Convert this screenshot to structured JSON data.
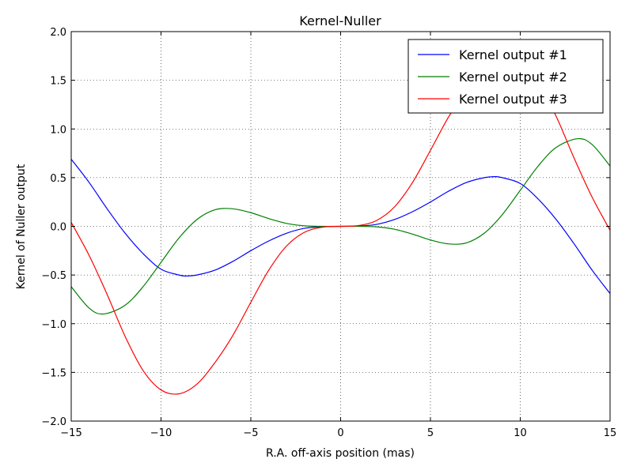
{
  "chart_data": {
    "type": "line",
    "title": "Kernel-Nuller",
    "xlabel": "R.A. off-axis position (mas)",
    "ylabel": "Kernel of Nuller output",
    "xlim": [
      -15,
      15
    ],
    "ylim": [
      -2.0,
      2.0
    ],
    "xticks": [
      "−15",
      "−10",
      "−5",
      "0",
      "5",
      "10",
      "15"
    ],
    "yticks": [
      "−2.0",
      "−1.5",
      "−1.0",
      "−0.5",
      "0.0",
      "0.5",
      "1.0",
      "1.5",
      "2.0"
    ],
    "grid": true,
    "legend_position": "top-right",
    "series": [
      {
        "name": "Kernel output #1",
        "color": "#0000ff",
        "x": [
          -15,
          -14,
          -13,
          -12,
          -11,
          -10,
          -9,
          -8.6,
          -8,
          -7,
          -6,
          -5,
          -4,
          -3,
          -2,
          -1,
          0,
          1,
          2,
          3,
          4,
          5,
          6,
          7,
          8,
          8.6,
          9,
          10,
          11,
          12,
          13,
          14,
          15
        ],
        "y": [
          0.69,
          0.45,
          0.18,
          -0.07,
          -0.28,
          -0.44,
          -0.5,
          -0.51,
          -0.5,
          -0.45,
          -0.36,
          -0.25,
          -0.15,
          -0.07,
          -0.02,
          -0.003,
          0.0,
          0.003,
          0.02,
          0.07,
          0.15,
          0.25,
          0.36,
          0.45,
          0.5,
          0.51,
          0.5,
          0.44,
          0.28,
          0.07,
          -0.18,
          -0.45,
          -0.69
        ]
      },
      {
        "name": "Kernel output #2",
        "color": "#008000",
        "x": [
          -15,
          -14,
          -13.2,
          -12,
          -11,
          -10,
          -9,
          -8,
          -7,
          -6,
          -5,
          -4,
          -3,
          -2,
          -1,
          0,
          1,
          2,
          3,
          4,
          5,
          6,
          7,
          8,
          9,
          10,
          11,
          12,
          13.2,
          14,
          15
        ],
        "y": [
          -0.62,
          -0.84,
          -0.9,
          -0.81,
          -0.62,
          -0.37,
          -0.12,
          0.07,
          0.17,
          0.18,
          0.14,
          0.08,
          0.03,
          0.005,
          0.0,
          0.0,
          0.0,
          -0.005,
          -0.03,
          -0.08,
          -0.14,
          -0.18,
          -0.17,
          -0.07,
          0.12,
          0.37,
          0.62,
          0.81,
          0.9,
          0.84,
          0.62
        ]
      },
      {
        "name": "Kernel output #3",
        "color": "#ff0000",
        "x": [
          -15,
          -14,
          -13,
          -12,
          -11,
          -10,
          -9,
          -8,
          -7,
          -6,
          -5,
          -4,
          -3,
          -2,
          -1,
          0,
          1,
          2,
          3,
          4,
          5,
          6,
          7,
          8,
          9,
          10,
          11,
          12,
          13,
          14,
          15
        ],
        "y": [
          0.04,
          -0.3,
          -0.7,
          -1.13,
          -1.48,
          -1.68,
          -1.72,
          -1.62,
          -1.4,
          -1.12,
          -0.78,
          -0.45,
          -0.2,
          -0.06,
          -0.008,
          0.0,
          0.008,
          0.06,
          0.2,
          0.45,
          0.78,
          1.12,
          1.4,
          1.62,
          1.72,
          1.68,
          1.48,
          1.13,
          0.7,
          0.3,
          -0.04
        ]
      }
    ]
  }
}
